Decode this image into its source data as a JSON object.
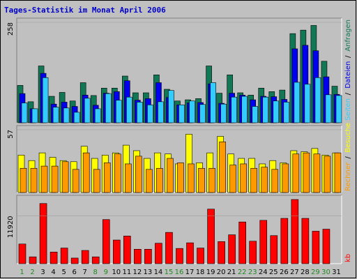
{
  "title": "Tages-Statistik im Monat April 2006",
  "colors": {
    "background": "#c0c0c0",
    "panel": "#c0c0c0",
    "title": "#0000cc",
    "anfragen": "#117755",
    "dateien": "#0000ee",
    "seiten": "#33ccff",
    "besuche": "#ffff00",
    "rechner": "#ff9900",
    "kb": "#ff0000",
    "weekend_label": "#228822",
    "weekday_label": "#000000"
  },
  "chart_data": [
    {
      "type": "bar",
      "panel": "top",
      "y_tick": "258",
      "ylim": [
        0,
        258
      ],
      "legend": [
        {
          "name": "Anfragen",
          "color": "#117755"
        },
        {
          "name": "Dateien",
          "color": "#0000ee"
        },
        {
          "name": "Seiten",
          "color": "#33ccff"
        }
      ],
      "categories": [
        "1",
        "2",
        "3",
        "4",
        "5",
        "6",
        "7",
        "8",
        "9",
        "10",
        "11",
        "12",
        "13",
        "14",
        "15",
        "16",
        "17",
        "18",
        "19",
        "20",
        "21",
        "22",
        "23",
        "24",
        "25",
        "26",
        "27",
        "28",
        "29",
        "30",
        "31"
      ],
      "series": [
        {
          "name": "Anfragen",
          "values": [
            96,
            54,
            146,
            68,
            78,
            56,
            103,
            70,
            89,
            89,
            120,
            77,
            77,
            123,
            86,
            56,
            59,
            62,
            146,
            76,
            123,
            77,
            71,
            89,
            80,
            84,
            229,
            238,
            250,
            158,
            94
          ]
        },
        {
          "name": "Dateien",
          "values": [
            75,
            36,
            127,
            48,
            53,
            42,
            71,
            45,
            76,
            80,
            108,
            58,
            62,
            103,
            65,
            46,
            51,
            52,
            100,
            50,
            76,
            71,
            59,
            68,
            67,
            60,
            190,
            199,
            185,
            118,
            73
          ]
        },
        {
          "name": "Seiten",
          "values": [
            51,
            36,
            116,
            40,
            38,
            27,
            63,
            36,
            75,
            58,
            66,
            53,
            46,
            54,
            83,
            46,
            56,
            47,
            103,
            48,
            66,
            68,
            42,
            66,
            56,
            53,
            104,
            99,
            116,
            72,
            70
          ]
        }
      ]
    },
    {
      "type": "bar",
      "panel": "middle",
      "y_tick": "57",
      "ylim": [
        0,
        57
      ],
      "legend": [
        {
          "name": "Besuche",
          "color": "#ffff00"
        },
        {
          "name": "Rechner",
          "color": "#ff9900"
        }
      ],
      "series": [
        {
          "name": "Besuche",
          "values": [
            34,
            29,
            36,
            32,
            29,
            28,
            42,
            31,
            34,
            36,
            43,
            38,
            31,
            36,
            35,
            26,
            53,
            27,
            36,
            51,
            35,
            31,
            31,
            26,
            29,
            27,
            38,
            37,
            40,
            34,
            36
          ]
        },
        {
          "name": "Rechner",
          "values": [
            22,
            22,
            24,
            24,
            28,
            21,
            36,
            21,
            27,
            35,
            26,
            33,
            21,
            22,
            31,
            27,
            26,
            22,
            22,
            46,
            25,
            26,
            22,
            23,
            21,
            26,
            35,
            36,
            35,
            33,
            36
          ]
        }
      ]
    },
    {
      "type": "bar",
      "panel": "bottom",
      "y_tick": "11920",
      "ylim": [
        0,
        16000
      ],
      "legend": [
        {
          "name": "kb",
          "color": "#ff0000"
        }
      ],
      "series": [
        {
          "name": "kb",
          "values": [
            4900,
            1700,
            15000,
            2900,
            3900,
            1400,
            3300,
            1700,
            11000,
            5900,
            6900,
            3600,
            3600,
            5100,
            7800,
            3800,
            5200,
            3900,
            13600,
            5500,
            7200,
            10400,
            5600,
            10800,
            7000,
            11300,
            16200,
            11300,
            8100,
            8600,
            0
          ]
        }
      ]
    }
  ],
  "weekend_days": [
    "1",
    "2",
    "8",
    "9",
    "15",
    "16",
    "22",
    "23",
    "29",
    "30"
  ]
}
